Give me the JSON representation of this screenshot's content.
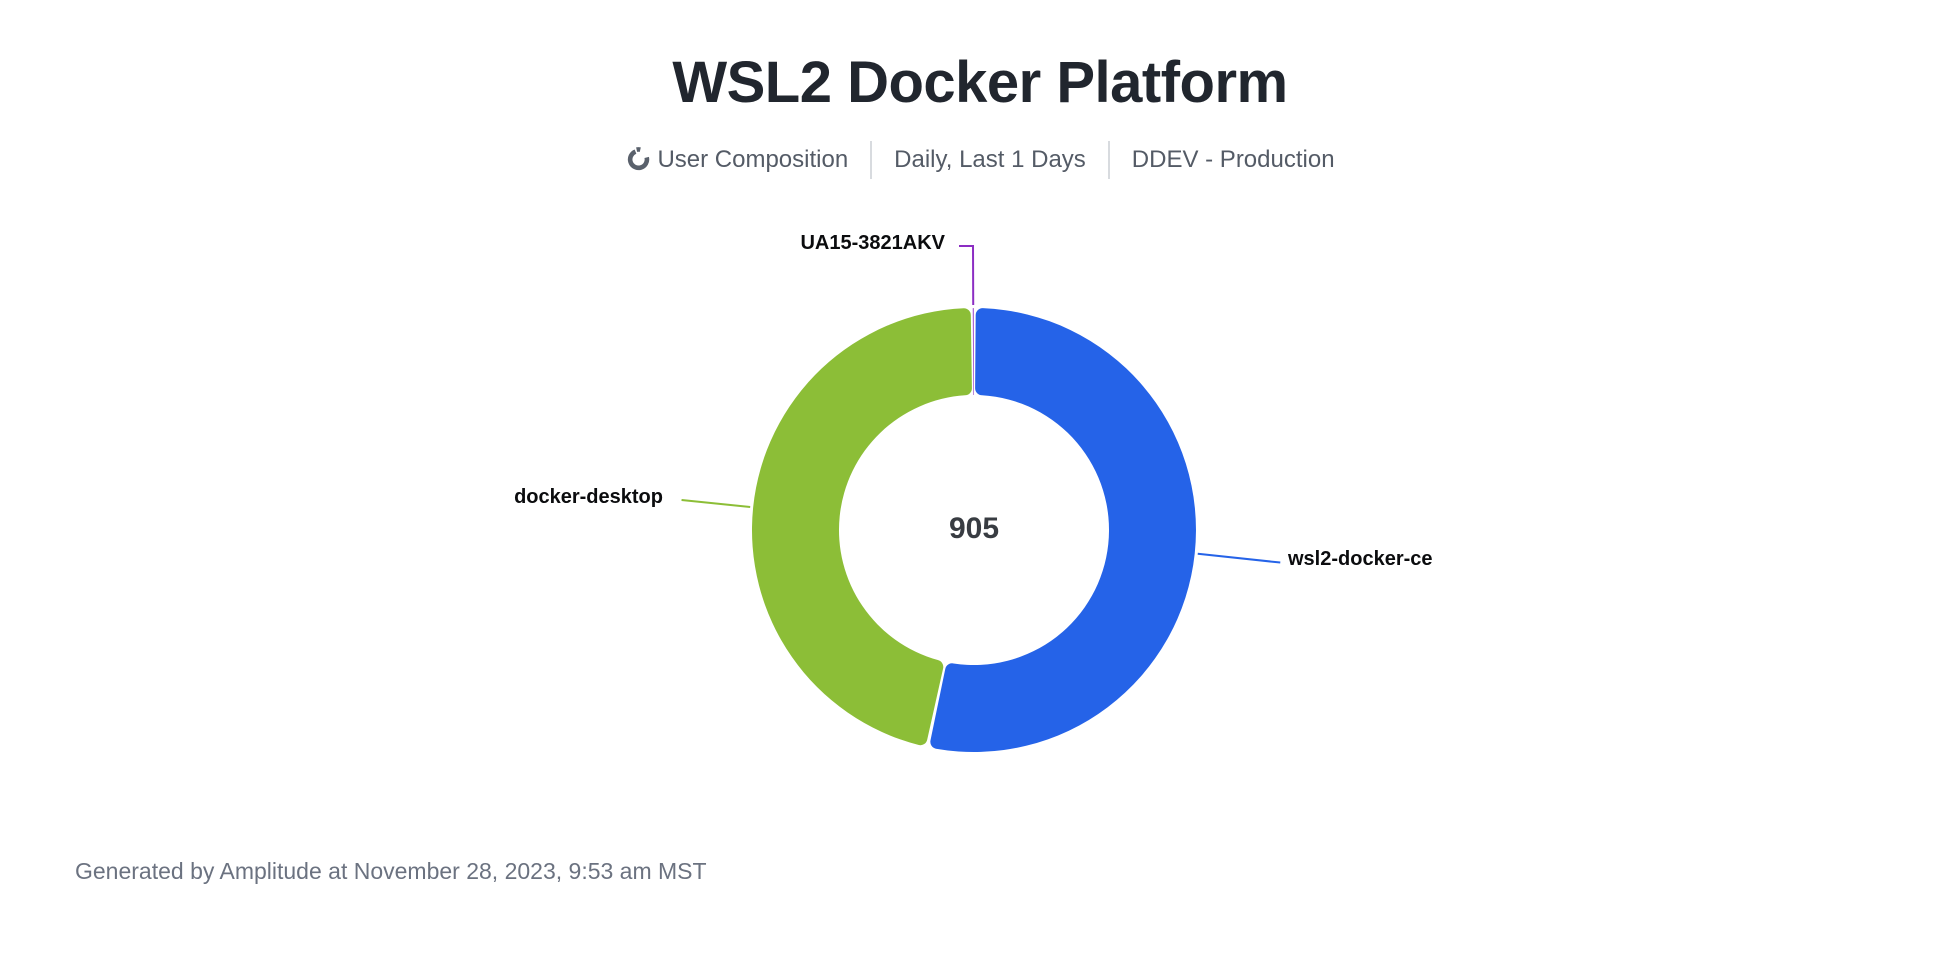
{
  "header": {
    "title": "WSL2 Docker Platform",
    "meta": {
      "chart_type_icon": "donut-chart-icon",
      "chart_type_label": "User Composition",
      "date_range_label": "Daily, Last 1 Days",
      "project_label": "DDEV - Production"
    }
  },
  "chart_data": {
    "type": "pie",
    "subtype": "donut",
    "title": "WSL2 Docker Platform",
    "center_total": "905",
    "total_users": 905,
    "values_estimated": true,
    "start_angle_deg": 0,
    "direction": "clockwise",
    "inner_radius_ratio": 0.61,
    "labels": "outside-with-leader-lines",
    "slices": [
      {
        "label": "wsl2-docker-ce",
        "value": 483,
        "share_pct": 53.4,
        "color": "#2563E8"
      },
      {
        "label": "docker-desktop",
        "value": 421,
        "share_pct": 46.5,
        "color": "#8CBE37"
      },
      {
        "label": "UA15-3821AKV",
        "value": 1,
        "share_pct": 0.1,
        "color": "#8C2DC3"
      }
    ]
  },
  "footer": {
    "attribution": "Generated by Amplitude at November 28, 2023, 9:53 am MST"
  },
  "colors": {
    "background": "#FFFFFF",
    "title_text": "#21262E",
    "meta_text": "#545B66",
    "separator": "#D8DBDF",
    "slice_label_text": "#0B0C0E",
    "center_total_text": "#383C42",
    "footer_text": "#6B7280",
    "icon_gray": "#5A616C"
  }
}
